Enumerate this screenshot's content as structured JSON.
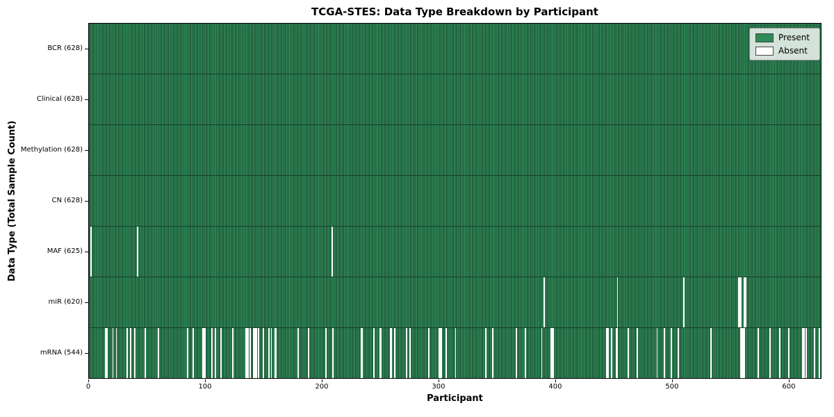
{
  "chart_data": {
    "type": "heatmap",
    "title": "TCGA-STES: Data Type Breakdown by Participant",
    "xlabel": "Participant",
    "ylabel": "Data Type (Total Sample Count)",
    "n_participants": 628,
    "xlim": [
      0,
      628
    ],
    "x_ticks": [
      0,
      100,
      200,
      300,
      400,
      500,
      600
    ],
    "grid": false,
    "legend": {
      "position": "upper right",
      "entries": [
        "Present",
        "Absent"
      ]
    },
    "colors": {
      "present": "#2E8B57",
      "present_edge": "#20543A",
      "absent": "#FFFFFF",
      "row_separator": "#173d28"
    },
    "rows": [
      {
        "label": "BCR (628)",
        "data_type": "BCR",
        "present_count": 628,
        "absent_participants": []
      },
      {
        "label": "Clinical (628)",
        "data_type": "Clinical",
        "present_count": 628,
        "absent_participants": []
      },
      {
        "label": "Methylation (628)",
        "data_type": "Methylation",
        "present_count": 628,
        "absent_participants": []
      },
      {
        "label": "CN (628)",
        "data_type": "CN",
        "present_count": 628,
        "absent_participants": []
      },
      {
        "label": "MAF (625)",
        "data_type": "MAF",
        "present_count": 625,
        "absent_participants": [
          1,
          41,
          208
        ]
      },
      {
        "label": "miR (620)",
        "data_type": "miR",
        "present_count": 620,
        "absent_participants": [
          390,
          453,
          510,
          557,
          558,
          559,
          562,
          563
        ]
      },
      {
        "label": "mRNA (544)",
        "data_type": "mRNA",
        "present_count": 544,
        "absent_participants": [
          14,
          15,
          20,
          23,
          32,
          35,
          39,
          48,
          59,
          84,
          89,
          97,
          98,
          99,
          105,
          108,
          113,
          123,
          134,
          135,
          136,
          138,
          141,
          142,
          143,
          145,
          149,
          154,
          156,
          159,
          160,
          179,
          188,
          203,
          209,
          233,
          234,
          244,
          249,
          250,
          258,
          259,
          262,
          272,
          275,
          291,
          300,
          301,
          302,
          306,
          314,
          340,
          346,
          366,
          374,
          388,
          396,
          397,
          398,
          444,
          445,
          448,
          452,
          453,
          462,
          470,
          487,
          493,
          499,
          505,
          533,
          559,
          560,
          561,
          562,
          574,
          584,
          592,
          600,
          612,
          613,
          615,
          622,
          626
        ]
      }
    ]
  }
}
